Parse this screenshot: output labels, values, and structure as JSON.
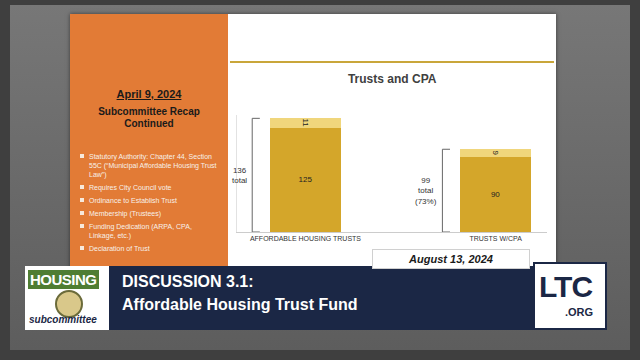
{
  "slide": {
    "heading": "April 9, 2024",
    "subheading": "Subcommittee Recap Continued",
    "bullets": [
      "Statutory Authority: Chapter 44, Section 55C (“Municipal Affordable Housing Trust Law”)",
      "Requires City Council vote",
      "Ordinance to Establish Trust",
      "Membership (Trustees)",
      "Funding Dedication (ARPA, CPA, Linkage, etc.)",
      "Declaration of Trust"
    ],
    "date": "August 13, 2024"
  },
  "banner": {
    "title": "DISCUSSION 3.1:",
    "subtitle": "Affordable Housing Trust Fund",
    "left_logo": [
      "HOUSING",
      "subcommittee"
    ],
    "right_logo": [
      "LTC",
      ".ORG"
    ]
  },
  "chart_data": {
    "type": "bar",
    "title": "Trusts and CPA",
    "categories": [
      "AFFORDABLE HOUSING TRUSTS",
      "TRUSTS W/CPA"
    ],
    "series": [
      {
        "color": "#d4a62a",
        "values": [
          125,
          90
        ]
      },
      {
        "color": "#f0d67c",
        "values": [
          11,
          9
        ]
      }
    ],
    "stacked": true,
    "data_labels": true,
    "tick_labels": "x",
    "grid": false,
    "ylim": [
      0,
      140
    ],
    "yticks": [],
    "brackets": [
      {
        "value": 136,
        "label": [
          "136",
          "total"
        ]
      },
      {
        "value": 99,
        "label": [
          "99",
          "total",
          "(73%)"
        ]
      }
    ]
  }
}
